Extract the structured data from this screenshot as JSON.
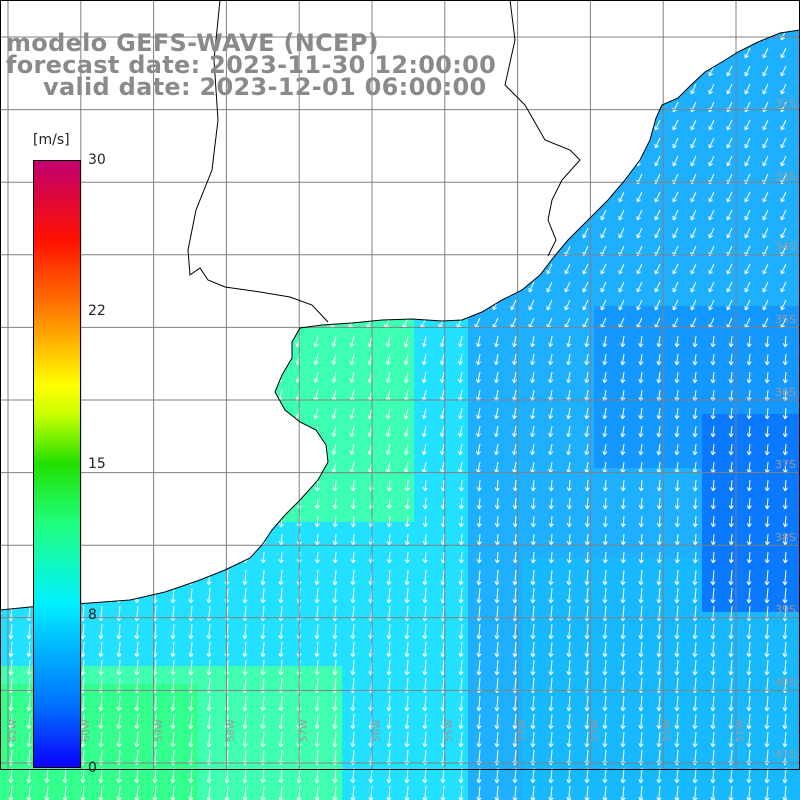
{
  "header": {
    "line1": "modelo GEFS-WAVE (NCEP)",
    "line2": "forecast date: 2023-11-30 12:00:00",
    "line3": "valid date: 2023-12-01 06:00:00"
  },
  "colorbar": {
    "unit": "[m/s]",
    "ticks": [
      "30",
      "22",
      "15",
      "8",
      "0"
    ],
    "colors_low_to_high": [
      "#0a00ff",
      "#0070ff",
      "#00c8ff",
      "#00f0ff",
      "#20ff80",
      "#20e000",
      "#c8ff00",
      "#ffff00",
      "#ff8000",
      "#ff1000",
      "#c00070"
    ]
  },
  "latitude_labels": [
    "32S",
    "33S",
    "34S",
    "35S",
    "36S",
    "37S",
    "38S",
    "39S",
    "40S",
    "41S"
  ],
  "longitude_labels": [
    "61W",
    "60W",
    "59W",
    "58W",
    "57W",
    "56W",
    "55W",
    "54W",
    "53W",
    "52W",
    "51W"
  ],
  "colors": {
    "land": "#ffffff",
    "coastline": "#000000",
    "grid": "#808080",
    "arrow": "#ffffff"
  }
}
